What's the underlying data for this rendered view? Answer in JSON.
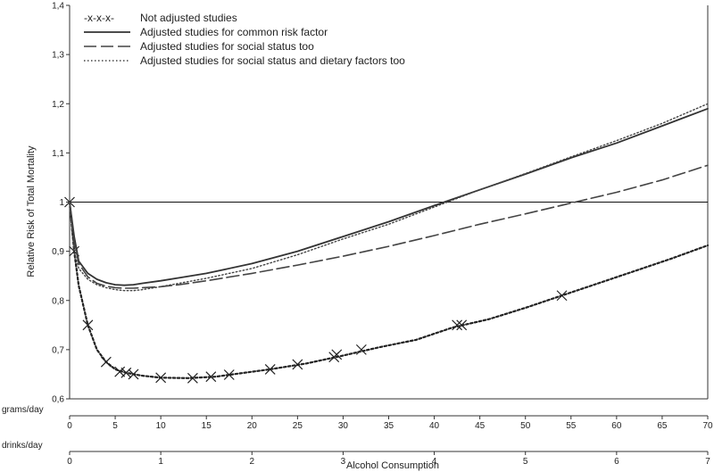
{
  "chart_data": {
    "type": "line",
    "title": "",
    "xlabel": "Alcohol Consumption",
    "ylabel": "Relative Risk of Total Mortality",
    "x_axis_rows": [
      {
        "label": "grams/day",
        "ticks": [
          "0",
          "5",
          "10",
          "15",
          "20",
          "25",
          "30",
          "35",
          "40",
          "45",
          "50",
          "55",
          "60",
          "65",
          "70"
        ],
        "tick_values": [
          0,
          5,
          10,
          15,
          20,
          25,
          30,
          35,
          40,
          45,
          50,
          55,
          60,
          65,
          70
        ]
      },
      {
        "label": "drinks/day",
        "ticks": [
          "0",
          "1",
          "2",
          "3",
          "4",
          "5",
          "6",
          "7"
        ],
        "tick_values": [
          0,
          10,
          20,
          30,
          40,
          50,
          60,
          70
        ]
      }
    ],
    "xlim": [
      0,
      70
    ],
    "ylim": [
      0.6,
      1.4
    ],
    "y_ticks": [
      "0,6",
      "0,7",
      "0,8",
      "0,9",
      "1",
      "1,1",
      "1,2",
      "1,3",
      "1,4"
    ],
    "y_tick_values": [
      0.6,
      0.7,
      0.8,
      0.9,
      1.0,
      1.1,
      1.2,
      1.3,
      1.4
    ],
    "reference_line": 1.0,
    "grid": false,
    "legend_position": "top-left",
    "series": [
      {
        "name": "Not adjusted studies",
        "legend_marker": "-x-x-x-",
        "style": "dotted-heavy",
        "x": [
          0,
          1,
          2,
          4,
          5.5,
          6,
          7,
          10,
          13.5,
          15.5,
          17.5,
          22,
          25,
          29,
          32,
          42.5,
          43,
          54
        ],
        "y": [
          1.0,
          0.85,
          0.76,
          0.675,
          0.655,
          0.654,
          0.651,
          0.643,
          0.642,
          0.645,
          0.649,
          0.66,
          0.67,
          0.69,
          0.7,
          0.75,
          0.75,
          0.81
        ],
        "markers": [
          [
            0,
            1.0
          ],
          [
            0.5,
            0.9
          ],
          [
            2,
            0.75
          ],
          [
            4,
            0.675
          ],
          [
            5.5,
            0.655
          ],
          [
            6.2,
            0.653
          ],
          [
            7,
            0.65
          ],
          [
            10,
            0.643
          ],
          [
            13.5,
            0.642
          ],
          [
            15.5,
            0.645
          ],
          [
            17.5,
            0.649
          ],
          [
            22,
            0.66
          ],
          [
            25,
            0.67
          ],
          [
            29,
            0.685
          ],
          [
            29.3,
            0.69
          ],
          [
            32,
            0.7
          ],
          [
            42.5,
            0.75
          ],
          [
            43,
            0.75
          ],
          [
            54,
            0.81
          ]
        ],
        "curve": [
          [
            0,
            1.0
          ],
          [
            0.5,
            0.9
          ],
          [
            1,
            0.83
          ],
          [
            2,
            0.75
          ],
          [
            3,
            0.7
          ],
          [
            4,
            0.675
          ],
          [
            5,
            0.66
          ],
          [
            6,
            0.654
          ],
          [
            7,
            0.65
          ],
          [
            8,
            0.647
          ],
          [
            10,
            0.643
          ],
          [
            13,
            0.642
          ],
          [
            16,
            0.645
          ],
          [
            18,
            0.65
          ],
          [
            22,
            0.66
          ],
          [
            26,
            0.672
          ],
          [
            30,
            0.688
          ],
          [
            34,
            0.705
          ],
          [
            38,
            0.72
          ],
          [
            42,
            0.745
          ],
          [
            46,
            0.762
          ],
          [
            50,
            0.785
          ],
          [
            54,
            0.81
          ],
          [
            58,
            0.835
          ],
          [
            62,
            0.86
          ],
          [
            66,
            0.885
          ],
          [
            70,
            0.912
          ]
        ]
      },
      {
        "name": "Adjusted studies for common risk factor",
        "style": "solid",
        "curve": [
          [
            0,
            1.0
          ],
          [
            0.5,
            0.93
          ],
          [
            1,
            0.88
          ],
          [
            2,
            0.855
          ],
          [
            3,
            0.843
          ],
          [
            4,
            0.836
          ],
          [
            5,
            0.832
          ],
          [
            6,
            0.831
          ],
          [
            7,
            0.832
          ],
          [
            8,
            0.835
          ],
          [
            10,
            0.84
          ],
          [
            12,
            0.846
          ],
          [
            15,
            0.855
          ],
          [
            20,
            0.875
          ],
          [
            25,
            0.9
          ],
          [
            30,
            0.93
          ],
          [
            35,
            0.96
          ],
          [
            40,
            0.993
          ],
          [
            45,
            1.025
          ],
          [
            50,
            1.057
          ],
          [
            55,
            1.09
          ],
          [
            60,
            1.12
          ],
          [
            65,
            1.155
          ],
          [
            70,
            1.19
          ]
        ]
      },
      {
        "name": "Adjusted studies for social status too",
        "style": "dashed",
        "curve": [
          [
            0,
            1.0
          ],
          [
            0.5,
            0.92
          ],
          [
            1,
            0.875
          ],
          [
            2,
            0.848
          ],
          [
            3,
            0.835
          ],
          [
            4,
            0.829
          ],
          [
            5,
            0.826
          ],
          [
            6,
            0.825
          ],
          [
            7,
            0.825
          ],
          [
            8,
            0.826
          ],
          [
            10,
            0.828
          ],
          [
            12,
            0.832
          ],
          [
            15,
            0.84
          ],
          [
            20,
            0.855
          ],
          [
            25,
            0.872
          ],
          [
            30,
            0.89
          ],
          [
            35,
            0.91
          ],
          [
            40,
            0.932
          ],
          [
            45,
            0.955
          ],
          [
            50,
            0.976
          ],
          [
            55,
            0.998
          ],
          [
            60,
            1.02
          ],
          [
            65,
            1.045
          ],
          [
            70,
            1.075
          ]
        ]
      },
      {
        "name": "Adjusted studies for social status and dietary factors too",
        "style": "dotted",
        "curve": [
          [
            0,
            0.99
          ],
          [
            0.5,
            0.9
          ],
          [
            1,
            0.865
          ],
          [
            2,
            0.843
          ],
          [
            3,
            0.832
          ],
          [
            4,
            0.826
          ],
          [
            5,
            0.822
          ],
          [
            6,
            0.82
          ],
          [
            7,
            0.82
          ],
          [
            8,
            0.822
          ],
          [
            10,
            0.828
          ],
          [
            12,
            0.835
          ],
          [
            15,
            0.845
          ],
          [
            20,
            0.865
          ],
          [
            25,
            0.893
          ],
          [
            30,
            0.925
          ],
          [
            35,
            0.955
          ],
          [
            40,
            0.99
          ],
          [
            45,
            1.025
          ],
          [
            50,
            1.058
          ],
          [
            55,
            1.092
          ],
          [
            60,
            1.125
          ],
          [
            65,
            1.16
          ],
          [
            70,
            1.2
          ]
        ]
      }
    ]
  }
}
